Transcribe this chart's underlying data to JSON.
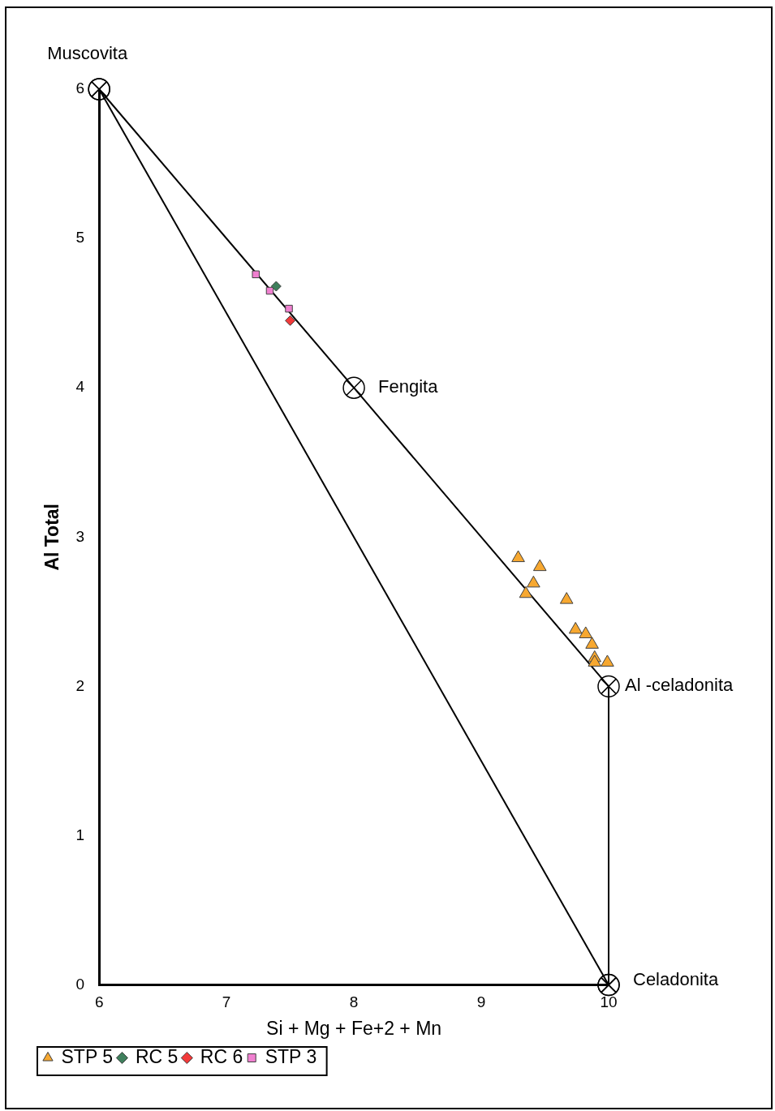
{
  "chart_data": {
    "type": "scatter",
    "xlabel": "Si + Mg + Fe+2 + Mn",
    "ylabel": "Al Total",
    "xlim": [
      6,
      10
    ],
    "xticks": [
      6,
      7,
      8,
      9,
      10
    ],
    "ylim": [
      0,
      6
    ],
    "yticks": [
      0,
      1,
      2,
      3,
      4,
      5,
      6
    ],
    "grid": false,
    "legend": "bottom left",
    "series": [
      {
        "type": "line",
        "color": "#000000",
        "marker": "circle",
        "x": [
          6,
          8,
          10,
          10
        ],
        "values": [
          6,
          4,
          2,
          0
        ]
      },
      {
        "type": "line",
        "color": "#000000",
        "marker": "circle",
        "x": [
          10,
          6
        ],
        "values": [
          0,
          6
        ]
      },
      {
        "name": "STP 5",
        "color": "#f7a830",
        "marker": "triangle",
        "x": [
          9.29,
          9.46,
          9.41,
          9.35,
          9.67,
          9.74,
          9.82,
          9.87,
          9.89,
          9.89,
          9.99
        ],
        "values": [
          2.86,
          2.8,
          2.69,
          2.62,
          2.58,
          2.38,
          2.35,
          2.28,
          2.19,
          2.16,
          2.16
        ]
      },
      {
        "name": "RC 5",
        "color": "#3f7f5c",
        "marker": "diamond",
        "x": [
          7.39
        ],
        "values": [
          4.68
        ]
      },
      {
        "name": "RC 6",
        "color": "#f23a3a",
        "marker": "diamond",
        "x": [
          7.5
        ],
        "values": [
          4.45
        ]
      },
      {
        "name": "STP 3",
        "color": "#f080d0",
        "marker": "square",
        "x": [
          7.23,
          7.34,
          7.49
        ],
        "values": [
          4.76,
          4.65,
          4.53
        ]
      }
    ],
    "annotations": [
      {
        "text": "Muscovita",
        "x": 6,
        "y": 6
      },
      {
        "text": "Fengita",
        "x": 8,
        "y": 4
      },
      {
        "text": "Al -celadonita",
        "x": 10,
        "y": 2
      },
      {
        "text": "Celadonita",
        "x": 10,
        "y": 0
      }
    ]
  }
}
